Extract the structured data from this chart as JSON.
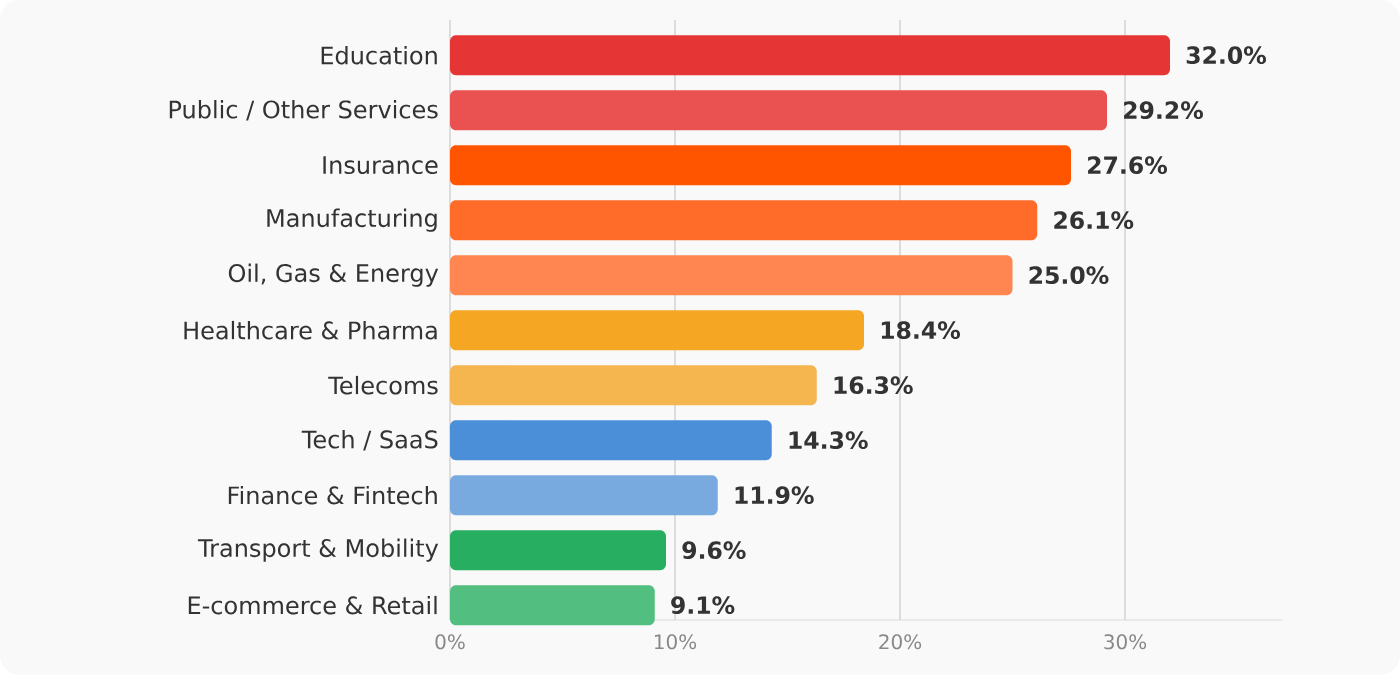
{
  "chart_data": {
    "type": "bar",
    "orientation": "horizontal",
    "categories": [
      "Education",
      "Public / Other Services",
      "Insurance",
      "Manufacturing",
      "Oil, Gas & Energy",
      "Healthcare & Pharma",
      "Telecoms",
      "Tech / SaaS",
      "Finance & Fintech",
      "Transport & Mobility",
      "E-commerce & Retail"
    ],
    "values": [
      32.0,
      29.2,
      27.6,
      26.1,
      25.0,
      18.4,
      16.3,
      14.3,
      11.9,
      9.6,
      9.1
    ],
    "colors": [
      "#e63535",
      "#ea5252",
      "#ff5500",
      "#ff6b28",
      "#ff8650",
      "#f5a623",
      "#f6b64f",
      "#4a8fd8",
      "#78aae0",
      "#27ae60",
      "#52be80"
    ],
    "value_labels": [
      "32.0%",
      "29.2%",
      "27.6%",
      "26.1%",
      "25.0%",
      "18.4%",
      "16.3%",
      "14.3%",
      "11.9%",
      "9.6%",
      "9.1%"
    ],
    "xlim": [
      0,
      37
    ],
    "xticks": [
      {
        "value": 0,
        "label": "0%"
      },
      {
        "value": 10,
        "label": "10%"
      },
      {
        "value": 20,
        "label": "20%"
      },
      {
        "value": 30,
        "label": "30%"
      }
    ],
    "grid": "x"
  }
}
